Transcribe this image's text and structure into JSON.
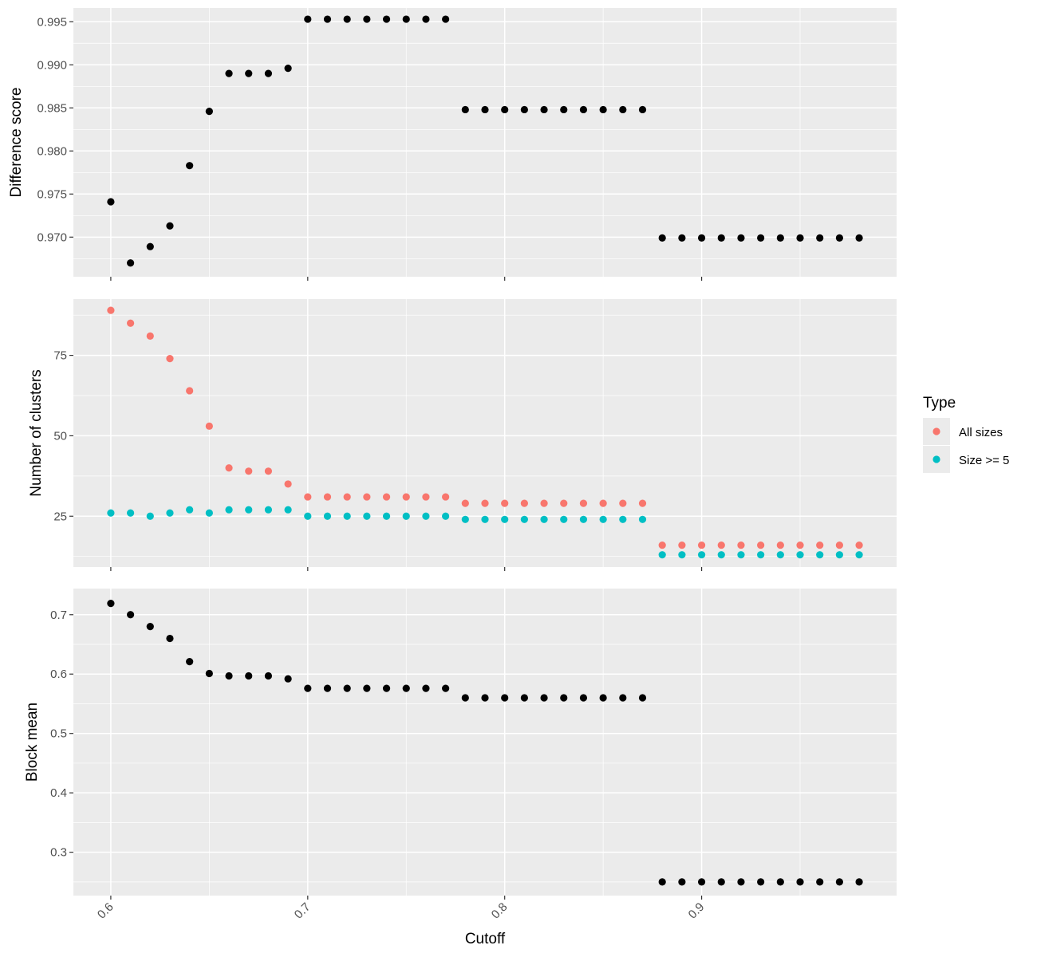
{
  "chart_data": [
    {
      "type": "scatter",
      "ylabel": "Difference score",
      "yticks": [
        "0.970",
        "0.975",
        "0.980",
        "0.985",
        "0.990",
        "0.995"
      ],
      "ylim": [
        0.9654,
        0.9966
      ],
      "xlim": [
        0.581,
        0.999
      ],
      "series": [
        {
          "color": "#000000",
          "x": [
            0.6,
            0.61,
            0.62,
            0.63,
            0.64,
            0.65,
            0.66,
            0.67,
            0.68,
            0.69,
            0.7,
            0.71,
            0.72,
            0.73,
            0.74,
            0.75,
            0.76,
            0.77,
            0.78,
            0.79,
            0.8,
            0.81,
            0.82,
            0.83,
            0.84,
            0.85,
            0.86,
            0.87,
            0.88,
            0.89,
            0.9,
            0.91,
            0.92,
            0.93,
            0.94,
            0.95,
            0.96,
            0.97,
            0.98
          ],
          "y": [
            0.9741,
            0.967,
            0.9689,
            0.9713,
            0.9783,
            0.9846,
            0.989,
            0.989,
            0.989,
            0.9896,
            0.9953,
            0.9953,
            0.9953,
            0.9953,
            0.9953,
            0.9953,
            0.9953,
            0.9953,
            0.9848,
            0.9848,
            0.9848,
            0.9848,
            0.9848,
            0.9848,
            0.9848,
            0.9848,
            0.9848,
            0.9848,
            0.9699,
            0.9699,
            0.9699,
            0.9699,
            0.9699,
            0.9699,
            0.9699,
            0.9699,
            0.9699,
            0.9699,
            0.9699
          ]
        }
      ]
    },
    {
      "type": "scatter",
      "ylabel": "Number of clusters",
      "yticks": [
        "25",
        "50",
        "75"
      ],
      "ylim": [
        9.2,
        92.5
      ],
      "xlim": [
        0.581,
        0.999
      ],
      "series": [
        {
          "name": "All sizes",
          "color": "#F8766D",
          "x": [
            0.6,
            0.61,
            0.62,
            0.63,
            0.64,
            0.65,
            0.66,
            0.67,
            0.68,
            0.69,
            0.7,
            0.71,
            0.72,
            0.73,
            0.74,
            0.75,
            0.76,
            0.77,
            0.78,
            0.79,
            0.8,
            0.81,
            0.82,
            0.83,
            0.84,
            0.85,
            0.86,
            0.87,
            0.88,
            0.89,
            0.9,
            0.91,
            0.92,
            0.93,
            0.94,
            0.95,
            0.96,
            0.97,
            0.98
          ],
          "y": [
            89,
            85,
            81,
            74,
            64,
            53,
            40,
            39,
            39,
            35,
            31,
            31,
            31,
            31,
            31,
            31,
            31,
            31,
            29,
            29,
            29,
            29,
            29,
            29,
            29,
            29,
            29,
            29,
            16,
            16,
            16,
            16,
            16,
            16,
            16,
            16,
            16,
            16,
            16
          ]
        },
        {
          "name": "Size >= 5",
          "color": "#00BFC4",
          "x": [
            0.6,
            0.61,
            0.62,
            0.63,
            0.64,
            0.65,
            0.66,
            0.67,
            0.68,
            0.69,
            0.7,
            0.71,
            0.72,
            0.73,
            0.74,
            0.75,
            0.76,
            0.77,
            0.78,
            0.79,
            0.8,
            0.81,
            0.82,
            0.83,
            0.84,
            0.85,
            0.86,
            0.87,
            0.88,
            0.89,
            0.9,
            0.91,
            0.92,
            0.93,
            0.94,
            0.95,
            0.96,
            0.97,
            0.98
          ],
          "y": [
            26,
            26,
            25,
            26,
            27,
            26,
            27,
            27,
            27,
            27,
            25,
            25,
            25,
            25,
            25,
            25,
            25,
            25,
            24,
            24,
            24,
            24,
            24,
            24,
            24,
            24,
            24,
            24,
            13,
            13,
            13,
            13,
            13,
            13,
            13,
            13,
            13,
            13,
            13
          ]
        }
      ]
    },
    {
      "type": "scatter",
      "ylabel": "Block mean",
      "xlabel": "Cutoff",
      "xticks": [
        "0.6",
        "0.7",
        "0.8",
        "0.9"
      ],
      "yticks": [
        "0.3",
        "0.4",
        "0.5",
        "0.6",
        "0.7"
      ],
      "ylim": [
        0.227,
        0.744
      ],
      "xlim": [
        0.581,
        0.999
      ],
      "series": [
        {
          "color": "#000000",
          "x": [
            0.6,
            0.61,
            0.62,
            0.63,
            0.64,
            0.65,
            0.66,
            0.67,
            0.68,
            0.69,
            0.7,
            0.71,
            0.72,
            0.73,
            0.74,
            0.75,
            0.76,
            0.77,
            0.78,
            0.79,
            0.8,
            0.81,
            0.82,
            0.83,
            0.84,
            0.85,
            0.86,
            0.87,
            0.88,
            0.89,
            0.9,
            0.91,
            0.92,
            0.93,
            0.94,
            0.95,
            0.96,
            0.97,
            0.98
          ],
          "y": [
            0.719,
            0.7,
            0.68,
            0.66,
            0.621,
            0.601,
            0.597,
            0.597,
            0.597,
            0.592,
            0.576,
            0.576,
            0.576,
            0.576,
            0.576,
            0.576,
            0.576,
            0.576,
            0.56,
            0.56,
            0.56,
            0.56,
            0.56,
            0.56,
            0.56,
            0.56,
            0.56,
            0.56,
            0.25,
            0.25,
            0.25,
            0.25,
            0.25,
            0.25,
            0.25,
            0.25,
            0.25,
            0.25,
            0.25
          ]
        }
      ]
    }
  ],
  "legend": {
    "title": "Type",
    "items": [
      {
        "label": "All sizes",
        "color": "#F8766D"
      },
      {
        "label": "Size >= 5",
        "color": "#00BFC4"
      }
    ]
  }
}
